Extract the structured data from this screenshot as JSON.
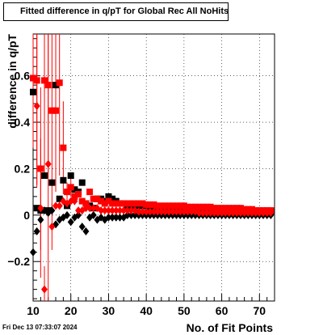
{
  "chart_data": {
    "type": "scatter",
    "title": "Fitted difference in q/pT for Global Rec All NoHits",
    "xlabel": "No. of Fit Points",
    "ylabel": "difference in q/pT",
    "xlim": [
      10,
      74
    ],
    "ylim": [
      -0.37,
      0.78
    ],
    "x_ticks": [
      10,
      20,
      30,
      40,
      50,
      60,
      70
    ],
    "x_tick_labels": [
      "10",
      "20",
      "30",
      "40",
      "50",
      "60",
      "70"
    ],
    "y_ticks": [
      -0.2,
      0,
      0.2,
      0.4,
      0.6
    ],
    "y_tick_labels": [
      "−0.2",
      "0",
      "0.2",
      "0.4",
      "0.6"
    ],
    "grid": true,
    "series": [
      {
        "marker": "square",
        "color": "#000000",
        "points": [
          [
            10,
            0.53
          ],
          [
            11,
            0.03
          ],
          [
            12,
            0.02
          ],
          [
            13,
            0.17
          ],
          [
            14,
            0.02
          ],
          [
            15,
            0.14
          ],
          [
            16,
            0.56
          ],
          [
            17,
            0.07
          ],
          [
            18,
            0.15
          ],
          [
            19,
            0.04
          ],
          [
            20,
            0.17
          ],
          [
            21,
            0.11
          ],
          [
            22,
            0.1
          ],
          [
            23,
            0.14
          ],
          [
            24,
            0.05
          ],
          [
            25,
            0.04
          ],
          [
            26,
            0.03
          ],
          [
            27,
            0.07
          ],
          [
            28,
            0.07
          ],
          [
            29,
            0.06
          ],
          [
            30,
            0.08
          ],
          [
            31,
            0.07
          ],
          [
            32,
            0.06
          ],
          [
            33,
            0.05
          ],
          [
            34,
            0.05
          ],
          [
            35,
            0.04
          ],
          [
            36,
            0.04
          ],
          [
            37,
            0.04
          ],
          [
            38,
            0.04
          ],
          [
            39,
            0.04
          ],
          [
            40,
            0.04
          ],
          [
            41,
            0.035
          ],
          [
            42,
            0.035
          ],
          [
            43,
            0.035
          ],
          [
            44,
            0.03
          ],
          [
            45,
            0.03
          ],
          [
            46,
            0.03
          ],
          [
            47,
            0.03
          ],
          [
            48,
            0.03
          ],
          [
            49,
            0.03
          ],
          [
            50,
            0.03
          ],
          [
            51,
            0.03
          ],
          [
            52,
            0.03
          ],
          [
            53,
            0.025
          ],
          [
            54,
            0.025
          ],
          [
            55,
            0.025
          ],
          [
            56,
            0.025
          ],
          [
            57,
            0.025
          ],
          [
            58,
            0.025
          ],
          [
            59,
            0.02
          ],
          [
            60,
            0.02
          ],
          [
            61,
            0.02
          ],
          [
            62,
            0.02
          ],
          [
            63,
            0.02
          ],
          [
            64,
            0.02
          ],
          [
            65,
            0.02
          ],
          [
            66,
            0.02
          ],
          [
            67,
            0.02
          ],
          [
            68,
            0.015
          ],
          [
            69,
            0.015
          ],
          [
            70,
            0.015
          ],
          [
            71,
            0.015
          ],
          [
            72,
            0.015
          ],
          [
            73,
            0.015
          ]
        ]
      },
      {
        "marker": "diamond",
        "color": "#000000",
        "points": [
          [
            10,
            -0.16
          ],
          [
            11,
            -0.07
          ],
          [
            12,
            -0.02
          ],
          [
            13,
            0.02
          ],
          [
            14,
            0.01
          ],
          [
            15,
            0.02
          ],
          [
            16,
            -0.04
          ],
          [
            17,
            -0.02
          ],
          [
            18,
            -0.01
          ],
          [
            19,
            0.0
          ],
          [
            20,
            -0.03
          ],
          [
            21,
            -0.01
          ],
          [
            22,
            0.0
          ],
          [
            23,
            -0.05
          ],
          [
            24,
            -0.07
          ],
          [
            25,
            -0.01
          ],
          [
            26,
            0.0
          ],
          [
            27,
            -0.02
          ],
          [
            28,
            -0.01
          ],
          [
            29,
            -0.02
          ],
          [
            30,
            -0.01
          ],
          [
            31,
            -0.01
          ],
          [
            32,
            -0.01
          ],
          [
            33,
            -0.01
          ],
          [
            34,
            -0.01
          ],
          [
            35,
            0.0
          ],
          [
            36,
            0.0
          ],
          [
            37,
            0.0
          ],
          [
            38,
            0.0
          ],
          [
            39,
            0.0
          ],
          [
            40,
            0.0
          ],
          [
            41,
            0.0
          ],
          [
            42,
            0.0
          ],
          [
            43,
            0.0
          ],
          [
            44,
            0.0
          ],
          [
            45,
            0.0
          ],
          [
            46,
            0.0
          ],
          [
            47,
            0.0
          ],
          [
            48,
            0.0
          ],
          [
            49,
            0.0
          ],
          [
            50,
            0.0
          ],
          [
            51,
            0.0
          ],
          [
            52,
            0.0
          ],
          [
            53,
            0.0
          ],
          [
            54,
            0.0
          ],
          [
            55,
            0.0
          ],
          [
            56,
            0.0
          ],
          [
            57,
            0.0
          ],
          [
            58,
            0.0
          ],
          [
            59,
            0.0
          ],
          [
            60,
            0.0
          ],
          [
            61,
            0.0
          ],
          [
            62,
            0.0
          ],
          [
            63,
            0.0
          ],
          [
            64,
            0.0
          ],
          [
            65,
            0.0
          ],
          [
            66,
            0.0
          ],
          [
            67,
            0.0
          ],
          [
            68,
            0.0
          ],
          [
            69,
            0.0
          ],
          [
            70,
            0.0
          ],
          [
            71,
            0.0
          ],
          [
            72,
            0.0
          ],
          [
            73,
            0.0
          ]
        ]
      },
      {
        "marker": "square",
        "color": "#ff0000",
        "points": [
          [
            10,
            0.59
          ],
          [
            11,
            0.58
          ],
          [
            12,
            0.2
          ],
          [
            13,
            0.58
          ],
          [
            14,
            0.56
          ],
          [
            15,
            0.45
          ],
          [
            16,
            0.45
          ],
          [
            17,
            0.57
          ],
          [
            18,
            0.29
          ],
          [
            19,
            0.1
          ],
          [
            20,
            0.12
          ],
          [
            21,
            0.08
          ],
          [
            22,
            0.09
          ],
          [
            23,
            0.06
          ],
          [
            24,
            0.05
          ],
          [
            25,
            0.1
          ],
          [
            26,
            0.07
          ],
          [
            27,
            0.07
          ],
          [
            28,
            0.06
          ],
          [
            29,
            0.05
          ],
          [
            30,
            0.06
          ],
          [
            31,
            0.05
          ],
          [
            32,
            0.05
          ],
          [
            33,
            0.05
          ],
          [
            34,
            0.05
          ],
          [
            35,
            0.05
          ],
          [
            36,
            0.05
          ],
          [
            37,
            0.05
          ],
          [
            38,
            0.05
          ],
          [
            39,
            0.05
          ],
          [
            40,
            0.045
          ],
          [
            41,
            0.045
          ],
          [
            42,
            0.045
          ],
          [
            43,
            0.04
          ],
          [
            44,
            0.04
          ],
          [
            45,
            0.04
          ],
          [
            46,
            0.04
          ],
          [
            47,
            0.04
          ],
          [
            48,
            0.04
          ],
          [
            49,
            0.04
          ],
          [
            50,
            0.04
          ],
          [
            51,
            0.035
          ],
          [
            52,
            0.035
          ],
          [
            53,
            0.035
          ],
          [
            54,
            0.035
          ],
          [
            55,
            0.035
          ],
          [
            56,
            0.035
          ],
          [
            57,
            0.035
          ],
          [
            58,
            0.03
          ],
          [
            59,
            0.03
          ],
          [
            60,
            0.03
          ],
          [
            61,
            0.03
          ],
          [
            62,
            0.03
          ],
          [
            63,
            0.03
          ],
          [
            64,
            0.03
          ],
          [
            65,
            0.03
          ],
          [
            66,
            0.025
          ],
          [
            67,
            0.025
          ],
          [
            68,
            0.025
          ],
          [
            69,
            0.02
          ],
          [
            70,
            0.02
          ],
          [
            71,
            0.02
          ],
          [
            72,
            0.02
          ],
          [
            73,
            0.02
          ]
        ],
        "error_y": [
          [
            10,
            0.3
          ],
          [
            11,
            0.45
          ],
          [
            12,
            0.35
          ],
          [
            13,
            0.4
          ],
          [
            14,
            0.4
          ],
          [
            15,
            0.45
          ],
          [
            16,
            0.35
          ],
          [
            17,
            0.4
          ],
          [
            18,
            0.2
          ],
          [
            19,
            0.04
          ],
          [
            20,
            0.04
          ]
        ]
      },
      {
        "marker": "diamond",
        "color": "#ff0000",
        "points": [
          [
            11,
            0.47
          ],
          [
            12,
            0.03
          ],
          [
            13,
            -0.32
          ],
          [
            14,
            0.22
          ],
          [
            15,
            -0.05
          ],
          [
            16,
            0.04
          ],
          [
            17,
            0.04
          ],
          [
            18,
            0.06
          ],
          [
            19,
            0.05
          ],
          [
            20,
            0.06
          ],
          [
            21,
            0.06
          ],
          [
            22,
            0.02
          ],
          [
            23,
            0.02
          ],
          [
            24,
            0.03
          ],
          [
            25,
            0.03
          ],
          [
            26,
            0.03
          ],
          [
            27,
            0.03
          ],
          [
            28,
            0.02
          ],
          [
            29,
            0.02
          ],
          [
            30,
            0.02
          ],
          [
            31,
            0.02
          ],
          [
            32,
            0.02
          ],
          [
            33,
            0.02
          ],
          [
            34,
            0.02
          ],
          [
            35,
            0.02
          ],
          [
            36,
            0.02
          ],
          [
            37,
            0.02
          ],
          [
            38,
            0.015
          ],
          [
            39,
            0.015
          ],
          [
            40,
            0.015
          ],
          [
            41,
            0.015
          ],
          [
            42,
            0.015
          ],
          [
            43,
            0.015
          ],
          [
            44,
            0.015
          ],
          [
            45,
            0.015
          ],
          [
            46,
            0.015
          ],
          [
            47,
            0.015
          ],
          [
            48,
            0.015
          ],
          [
            49,
            0.015
          ],
          [
            50,
            0.015
          ],
          [
            51,
            0.015
          ],
          [
            52,
            0.015
          ],
          [
            53,
            0.015
          ],
          [
            54,
            0.01
          ],
          [
            55,
            0.01
          ],
          [
            56,
            0.01
          ],
          [
            57,
            0.01
          ],
          [
            58,
            0.01
          ],
          [
            59,
            0.01
          ],
          [
            60,
            0.01
          ],
          [
            61,
            0.01
          ],
          [
            62,
            0.01
          ],
          [
            63,
            0.01
          ],
          [
            64,
            0.01
          ],
          [
            65,
            0.01
          ],
          [
            66,
            0.01
          ],
          [
            67,
            0.01
          ],
          [
            68,
            0.01
          ],
          [
            69,
            0.01
          ],
          [
            70,
            0.01
          ],
          [
            71,
            0.01
          ],
          [
            72,
            0.01
          ],
          [
            73,
            0.01
          ]
        ],
        "error_y": [
          [
            11,
            0.35
          ],
          [
            12,
            0.3
          ],
          [
            13,
            0.1
          ],
          [
            14,
            0.6
          ],
          [
            15,
            0.1
          ]
        ]
      }
    ]
  },
  "footer": {
    "timestamp": "Fri Dec 13 07:33:07 2024"
  }
}
